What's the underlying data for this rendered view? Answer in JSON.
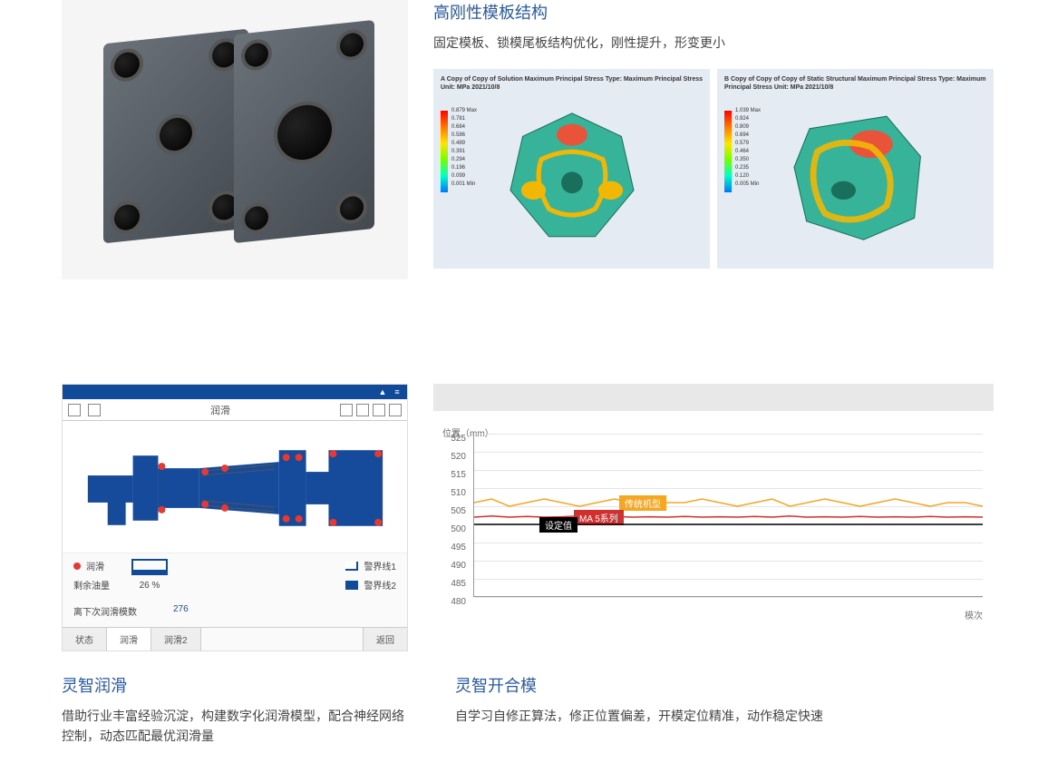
{
  "section1": {
    "title": "高刚性模板结构",
    "desc": "固定模板、锁模尾板结构优化，刚性提升，形变更小",
    "sim_left": {
      "meta": "A Copy of Copy of Solution\nMaximum Principal Stress\nType: Maximum Principal Stress\nUnit: MPa\n2021/10/8",
      "legend_colors": [
        "#ff0000",
        "#ff7800",
        "#ffe400",
        "#76ff00",
        "#00ffc4",
        "#0074ff"
      ],
      "legend_values": [
        "0.879 Max",
        "0.781",
        "0.684",
        "0.586",
        "0.489",
        "0.391",
        "0.294",
        "0.196",
        "0.099",
        "0.001 Min"
      ],
      "part_colors": {
        "body": "#37b39a",
        "highlight": "#f2b705",
        "hot": "#e9533a"
      }
    },
    "sim_right": {
      "meta": "B Copy of Copy of Copy of Static Structural\nMaximum Principal Stress\nType: Maximum Principal Stress\nUnit: MPa\n2021/10/8",
      "legend_colors": [
        "#ff0000",
        "#ff7800",
        "#ffe400",
        "#76ff00",
        "#00ffc4",
        "#0074ff"
      ],
      "legend_values": [
        "1.039 Max",
        "0.924",
        "0.809",
        "0.694",
        "0.579",
        "0.464",
        "0.350",
        "0.235",
        "0.120",
        "0.005 Min"
      ],
      "part_colors": {
        "body": "#37b39a",
        "highlight": "#f2b705",
        "hot": "#e9533a"
      }
    }
  },
  "lubrication": {
    "title": "灵智润滑",
    "desc": "借助行业丰富经验沉淀，构建数字化润滑模型，配合神经网络控制，动态匹配最优润滑量",
    "panel": {
      "toolbar_title": "润滑",
      "diagram_color": "#164a9a",
      "point_color": "#e53935",
      "legend": {
        "point_label": "润滑",
        "oil_label": "剩余油量",
        "oil_percent": "26 %",
        "warn1": "警界线1",
        "warn2": "警界线2"
      },
      "countdown_label": "离下次润滑模数",
      "countdown_value": "276",
      "tabs": [
        "状态",
        "润滑",
        "润滑2"
      ],
      "tab_right": "返回",
      "active_tab": 1
    }
  },
  "moldopen": {
    "title": "灵智开合模",
    "desc": "自学习自修正算法，修正位置偏差，开模定位精准，动作稳定快速",
    "chart": {
      "y_axis_title": "位置（mm）",
      "x_axis_title": "模次",
      "ylim": [
        480,
        525
      ],
      "y_ticks": [
        525,
        520,
        515,
        510,
        505,
        500,
        495,
        490,
        485,
        480
      ],
      "grid_color": "#e5e5e5",
      "axis_color": "#999999",
      "background_strip_color": "#e8e8e8",
      "series": [
        {
          "name": "传统机型",
          "label": "传统机型",
          "color": "#f5a623",
          "label_bg": "#f5a623",
          "values": [
            506,
            507,
            505,
            506,
            507,
            506,
            505,
            506,
            507,
            506,
            505,
            506,
            506,
            507,
            506,
            505,
            506,
            507,
            505,
            506,
            507,
            506,
            505,
            506,
            507,
            506,
            505,
            506,
            506,
            505
          ]
        },
        {
          "name": "MA 5系列",
          "label": "MA 5系列",
          "color": "#d32f2f",
          "label_bg": "#d32f2f",
          "values": [
            502,
            502.3,
            502,
            502.2,
            502,
            502.1,
            502.3,
            502,
            502.2,
            502,
            502.1,
            502,
            502.2,
            502,
            502.1,
            502,
            502.2,
            502,
            502.3,
            502,
            502.1,
            502,
            502.2,
            502,
            502.1,
            502,
            502.2,
            502,
            502.1,
            502
          ]
        },
        {
          "name": "设定值",
          "label": "设定值",
          "color": "#000000",
          "label_bg": "#000000",
          "values": [
            500,
            500,
            500,
            500,
            500,
            500,
            500,
            500,
            500,
            500,
            500,
            500,
            500,
            500,
            500,
            500,
            500,
            500,
            500,
            500,
            500,
            500,
            500,
            500,
            500,
            500,
            500,
            500,
            500,
            500
          ]
        }
      ]
    }
  }
}
